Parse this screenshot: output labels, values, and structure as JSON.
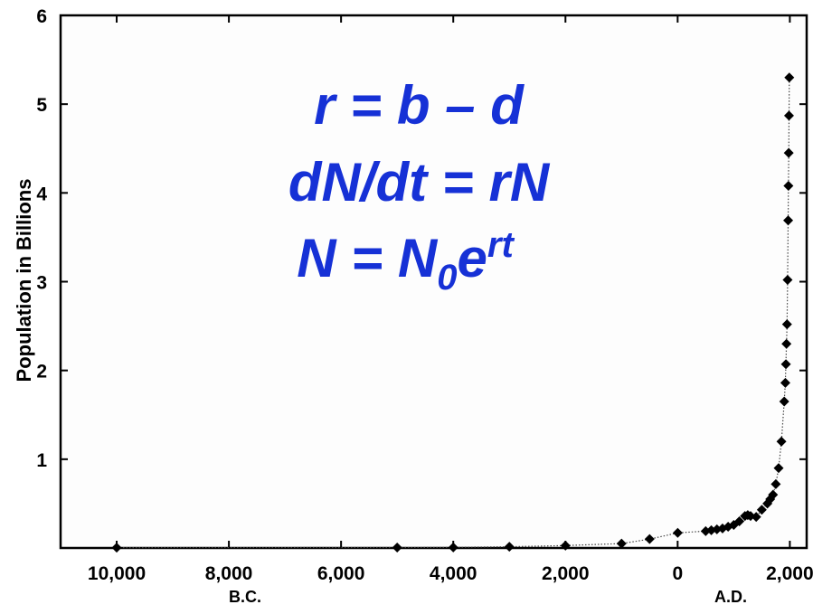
{
  "chart_data": {
    "type": "scatter",
    "title": "",
    "xlabel": "",
    "ylabel": "Population in Billions",
    "xlim": [
      -11000,
      2300
    ],
    "ylim": [
      0,
      6
    ],
    "x_ticks": [
      -10000,
      -8000,
      -6000,
      -4000,
      -2000,
      0,
      2000
    ],
    "x_tick_labels": [
      "10,000",
      "8,000",
      "6,000",
      "4,000",
      "2,000",
      "0",
      "2,000"
    ],
    "y_ticks": [
      1,
      2,
      3,
      4,
      5,
      6
    ],
    "y_tick_labels": [
      "1",
      "2",
      "3",
      "4",
      "5",
      "6"
    ],
    "era_labels": [
      "B.C.",
      "A.D."
    ],
    "equations": {
      "line1": "r = b – d",
      "line2": "dN/dt = rN",
      "line3_main": "N = N",
      "line3_sub": "0",
      "line3_e": "e",
      "line3_sup": "rt"
    },
    "series": [
      {
        "x": [
          -10000,
          -5000,
          -4000,
          -3000,
          -2000,
          -1000,
          -500,
          1,
          500,
          600,
          700,
          800,
          900,
          1000,
          1100,
          1200,
          1250,
          1300,
          1400,
          1500,
          1600,
          1650,
          1700,
          1750,
          1800,
          1850,
          1900,
          1920,
          1930,
          1940,
          1950,
          1960,
          1970,
          1975,
          1980,
          1985,
          1990
        ],
        "y": [
          0.004,
          0.005,
          0.007,
          0.014,
          0.027,
          0.05,
          0.1,
          0.17,
          0.19,
          0.2,
          0.21,
          0.22,
          0.24,
          0.26,
          0.3,
          0.36,
          0.37,
          0.36,
          0.35,
          0.43,
          0.5,
          0.55,
          0.6,
          0.72,
          0.9,
          1.2,
          1.65,
          1.86,
          2.07,
          2.3,
          2.52,
          3.02,
          3.69,
          4.08,
          4.45,
          4.87,
          5.3
        ]
      }
    ],
    "grid": false,
    "colors": {
      "points": "#000000",
      "equations": "#1631d6"
    }
  }
}
